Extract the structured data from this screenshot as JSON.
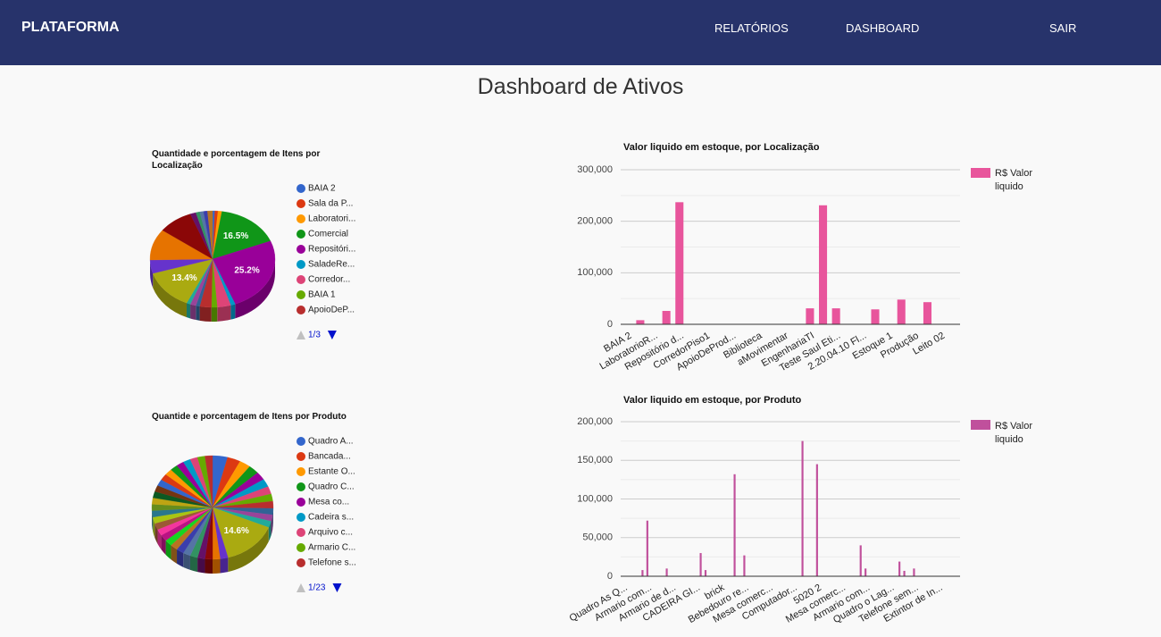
{
  "header": {
    "brand": "PLATAFORMA",
    "nav": [
      "RELATÓRIOS",
      "DASHBOARD",
      "SAIR"
    ]
  },
  "page_title": "Dashboard de Ativos",
  "chart_data": [
    {
      "type": "pie",
      "title": "Quantidade e porcentagem de Itens por Localização",
      "categories": [
        "BAIA 2",
        "Sala da P...",
        "Laboratori...",
        "Comercial",
        "Repositóri...",
        "SaladeRe...",
        "Corredor...",
        "BAIA 1",
        "ApoioDeP...",
        null,
        null,
        null,
        null,
        null,
        null,
        null,
        null,
        null,
        null,
        null,
        null
      ],
      "values": [
        0.6,
        0.8,
        1.0,
        16.5,
        25.2,
        1.2,
        3.5,
        1.5,
        3.0,
        1.0,
        1.5,
        1.0,
        13.4,
        4.5,
        10.5,
        9.0,
        1.5,
        1.0,
        1.0,
        1.0,
        1.3
      ],
      "value_labels": [
        null,
        null,
        null,
        "16.5%",
        "25.2%",
        null,
        null,
        null,
        null,
        null,
        null,
        null,
        "13.4%",
        null,
        null,
        null,
        null,
        null,
        null,
        null,
        null
      ],
      "colors": [
        "#3366cc",
        "#dc3912",
        "#ff9900",
        "#109618",
        "#990099",
        "#0099c6",
        "#dd4477",
        "#66aa00",
        "#b82e2e",
        "#316395",
        "#994499",
        "#22aa99",
        "#aaaa11",
        "#6633cc",
        "#e67300",
        "#8b0707",
        "#651067",
        "#329262",
        "#5574a6",
        "#3b3eac",
        "#b77322",
        "#16d620",
        "#b91383",
        "#f4359e",
        "#9c5935",
        "#a9c413",
        "#2a778d",
        "#668d1c",
        "#bea413",
        "#0c5922",
        "#743411"
      ],
      "legend_page": "1/3",
      "is3D": true
    },
    {
      "type": "bar",
      "title": "Valor liquido em estoque, por Localização",
      "categories": [
        "BAIA 2",
        null,
        "LaboratorioR...",
        null,
        "Repositório d...",
        null,
        "CorredorPiso1",
        null,
        "ApoioDeProd...",
        null,
        "Biblioteca",
        null,
        "aMovimentar",
        null,
        "EngenhariaTI",
        null,
        "Teste Saul Eti...",
        null,
        "2.20.04.10 Fl...",
        null,
        "Estoque 1",
        null,
        "Produção",
        null,
        "Leito 02",
        null
      ],
      "series": [
        {
          "name": "R$ Valor liquido",
          "color": "#e8559c",
          "values": [
            0,
            8000,
            0,
            26000,
            237000,
            0,
            0,
            0,
            0,
            0,
            0,
            0,
            0,
            0,
            31000,
            231000,
            31000,
            0,
            0,
            29000,
            0,
            48000,
            0,
            43000,
            0,
            0
          ]
        }
      ],
      "ylim": [
        0,
        300000
      ],
      "yticks": [
        0,
        {
          "value": 100000,
          "label": "100,000"
        },
        {
          "value": 200000,
          "label": "200,000"
        },
        {
          "value": 300000,
          "label": "300,000"
        }
      ],
      "minor_yticks": [
        50000,
        150000,
        250000
      ],
      "grid": true,
      "legend": "right"
    },
    {
      "type": "pie",
      "title": "Quantide e porcentagem de Itens por Produto",
      "categories": [
        "Quadro A...",
        "Bancada...",
        "Estante O...",
        "Quadro C...",
        "Mesa co...",
        "Cadeira s...",
        "Arquivo c...",
        "Armario C...",
        "Telefone s...",
        null,
        null,
        null,
        null,
        null,
        null,
        null,
        null,
        null,
        null,
        null,
        null,
        null,
        null,
        null,
        null,
        null,
        null,
        null,
        null,
        null,
        null,
        null,
        null,
        null,
        null,
        null,
        null,
        null,
        null,
        null
      ],
      "values": [
        4.0,
        3.5,
        3.0,
        2.8,
        2.6,
        2.5,
        2.4,
        2.3,
        2.2,
        2.0,
        2.0,
        2.0,
        14.6,
        2.1,
        2.0,
        2.0,
        2.0,
        2.0,
        2.0,
        2.0,
        2.0,
        2.0,
        2.0,
        2.0,
        2.0,
        2.0,
        2.0,
        2.0,
        2.0,
        2.0,
        2.0,
        2.0,
        2.0,
        2.0,
        2.0,
        2.0,
        2.0,
        2.0,
        2.0,
        2.0
      ],
      "value_labels": [
        null,
        null,
        null,
        null,
        null,
        null,
        null,
        null,
        null,
        null,
        null,
        null,
        "14.6%",
        null,
        null,
        null,
        null,
        null,
        null,
        null,
        null,
        null,
        null,
        null,
        null,
        null,
        null,
        null,
        null,
        null,
        null,
        null,
        null,
        null,
        null,
        null,
        null,
        null,
        null,
        null
      ],
      "colors": [
        "#3366cc",
        "#dc3912",
        "#ff9900",
        "#109618",
        "#990099",
        "#0099c6",
        "#dd4477",
        "#66aa00",
        "#b82e2e",
        "#316395",
        "#994499",
        "#22aa99",
        "#aaaa11",
        "#6633cc",
        "#e67300",
        "#8b0707",
        "#651067",
        "#329262",
        "#5574a6",
        "#3b3eac",
        "#b77322",
        "#16d620",
        "#b91383",
        "#f4359e",
        "#9c5935",
        "#a9c413",
        "#2a778d",
        "#668d1c",
        "#bea413",
        "#0c5922",
        "#743411"
      ],
      "legend_page": "1/23",
      "is3D": true
    },
    {
      "type": "bar",
      "title": "Valor liquido em estoque, por Produto",
      "categories": [
        "Quadro As Q...",
        null,
        null,
        null,
        null,
        "Armario com...",
        null,
        null,
        null,
        null,
        "Armario de d...",
        null,
        null,
        null,
        null,
        "CADEIRA GI...",
        null,
        null,
        null,
        null,
        "brick",
        null,
        null,
        null,
        null,
        "Bebedouro re...",
        null,
        null,
        null,
        null,
        "Mesa comerc...",
        null,
        null,
        null,
        null,
        "Computador...",
        null,
        null,
        null,
        null,
        "5020 2",
        null,
        null,
        null,
        null,
        "Mesa comerc...",
        null,
        null,
        null,
        null,
        "Armario com...",
        null,
        null,
        null,
        null,
        "Quadro o Lag...",
        null,
        null,
        null,
        null,
        "Telefone sem...",
        null,
        null,
        null,
        null,
        "Extintor de In...",
        null,
        null,
        null,
        null
      ],
      "series": [
        {
          "name": "R$ Valor liquido",
          "color": "#c0509c",
          "values": [
            0,
            0,
            0,
            0,
            8000,
            72000,
            0,
            0,
            0,
            10000,
            0,
            0,
            0,
            0,
            0,
            0,
            30000,
            8000,
            0,
            0,
            0,
            0,
            0,
            132000,
            0,
            27000,
            0,
            0,
            0,
            0,
            0,
            0,
            0,
            0,
            0,
            0,
            0,
            175000,
            0,
            0,
            145000,
            0,
            0,
            0,
            0,
            0,
            0,
            0,
            0,
            40000,
            10000,
            0,
            0,
            0,
            0,
            0,
            0,
            19000,
            7000,
            0,
            10000,
            0,
            0,
            0,
            0,
            0,
            0,
            0,
            0,
            0
          ]
        }
      ],
      "ylim": [
        0,
        200000
      ],
      "yticks": [
        0,
        {
          "value": 50000,
          "label": "50,000"
        },
        {
          "value": 100000,
          "label": "100,000"
        },
        {
          "value": 150000,
          "label": "150,000"
        },
        {
          "value": 200000,
          "label": "200,000"
        }
      ],
      "minor_yticks": [
        25000,
        75000,
        125000,
        175000
      ],
      "grid": true,
      "legend": "right"
    }
  ]
}
